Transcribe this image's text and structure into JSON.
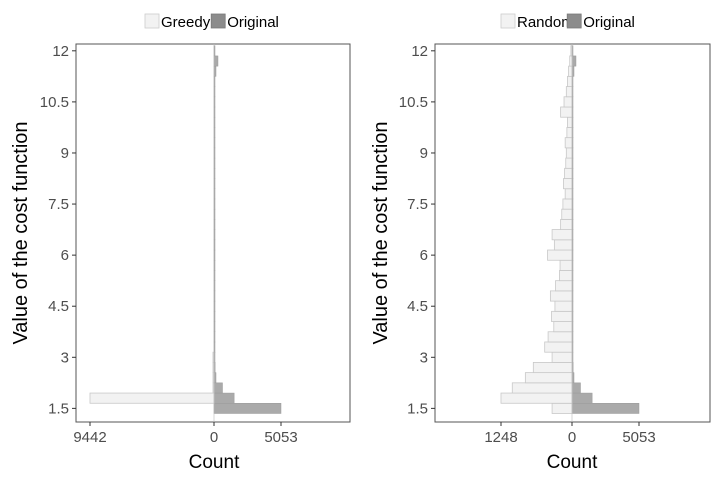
{
  "colors": {
    "left_series": "#f2f2f2",
    "left_series_stroke": "#c8c8c8",
    "right_series": "#aaaaaa",
    "legend_light": "#f2f2f2",
    "legend_dark": "#8c8c8c",
    "panel_border": "#555555"
  },
  "chart_data": [
    {
      "type": "bar",
      "orientation": "horizontal-back-to-back",
      "legend": [
        "Greedy",
        "Original"
      ],
      "legend_position": "top",
      "xlabel": "Count",
      "ylabel": "Value of the cost function",
      "xticks": [
        "9442",
        "0",
        "5053"
      ],
      "yticks": [
        "1.5",
        "3",
        "4.5",
        "6",
        "7.5",
        "9",
        "10.5",
        "12"
      ],
      "ylim": [
        1.1,
        12.2
      ],
      "xlim": [
        -9442,
        5053
      ],
      "grid": false,
      "bin_width": 0.3,
      "series": [
        {
          "name": "Greedy",
          "side": "left",
          "y": [
            1.8,
            2.1,
            2.4,
            2.7,
            3.0
          ],
          "values": [
            9442,
            40,
            15,
            8,
            5
          ]
        },
        {
          "name": "Original",
          "side": "right",
          "y": [
            1.5,
            1.8,
            2.1,
            2.4,
            2.7,
            3.0,
            3.3,
            3.6,
            3.9,
            4.2,
            4.5,
            4.8,
            5.1,
            5.4,
            5.7,
            6.0,
            6.3,
            6.6,
            6.9,
            7.2,
            7.5,
            7.8,
            8.1,
            8.4,
            8.7,
            9.0,
            9.3,
            9.6,
            9.9,
            10.2,
            10.5,
            10.8,
            11.1,
            11.4,
            11.7,
            12.0
          ],
          "values": [
            5053,
            1520,
            640,
            150,
            85,
            60,
            40,
            30,
            25,
            20,
            20,
            18,
            18,
            15,
            15,
            15,
            12,
            12,
            12,
            12,
            12,
            10,
            10,
            10,
            10,
            10,
            10,
            12,
            15,
            25,
            40,
            55,
            65,
            150,
            300,
            40
          ]
        }
      ]
    },
    {
      "type": "bar",
      "orientation": "horizontal-back-to-back",
      "legend": [
        "Random",
        "Original"
      ],
      "legend_position": "top",
      "xlabel": "Count",
      "ylabel": "Value of the cost function",
      "xticks": [
        "1248",
        "0",
        "5053"
      ],
      "yticks": [
        "1.5",
        "3",
        "4.5",
        "6",
        "7.5",
        "9",
        "10.5",
        "12"
      ],
      "ylim": [
        1.1,
        12.2
      ],
      "xlim": [
        -5053,
        5053
      ],
      "grid": false,
      "bin_width": 0.3,
      "series": [
        {
          "name": "Random",
          "side": "left",
          "y": [
            1.5,
            1.8,
            2.1,
            2.4,
            2.7,
            3.0,
            3.3,
            3.6,
            3.9,
            4.2,
            4.5,
            4.8,
            5.1,
            5.4,
            5.7,
            6.0,
            6.3,
            6.6,
            6.9,
            7.2,
            7.5,
            7.8,
            8.1,
            8.4,
            8.7,
            9.0,
            9.3,
            9.6,
            9.9,
            10.2,
            10.5,
            10.8,
            11.1,
            11.4,
            11.7,
            12.0
          ],
          "values": [
            350,
            1248,
            1050,
            820,
            680,
            350,
            480,
            420,
            320,
            360,
            300,
            380,
            290,
            220,
            210,
            430,
            310,
            350,
            200,
            180,
            160,
            120,
            150,
            130,
            110,
            100,
            120,
            90,
            80,
            200,
            140,
            100,
            80,
            60,
            40,
            20
          ]
        },
        {
          "name": "Original",
          "side": "right",
          "y": [
            1.5,
            1.8,
            2.1,
            2.4,
            2.7,
            3.0,
            3.3,
            3.6,
            3.9,
            4.2,
            4.5,
            4.8,
            5.1,
            5.4,
            5.7,
            6.0,
            6.3,
            6.6,
            6.9,
            7.2,
            7.5,
            7.8,
            8.1,
            8.4,
            8.7,
            9.0,
            9.3,
            9.6,
            9.9,
            10.2,
            10.5,
            10.8,
            11.1,
            11.4,
            11.7,
            12.0
          ],
          "values": [
            5053,
            1520,
            640,
            150,
            85,
            60,
            40,
            30,
            25,
            20,
            20,
            18,
            18,
            15,
            15,
            15,
            12,
            12,
            12,
            12,
            12,
            10,
            10,
            10,
            10,
            10,
            10,
            12,
            15,
            25,
            40,
            55,
            65,
            150,
            300,
            40
          ]
        }
      ]
    }
  ]
}
